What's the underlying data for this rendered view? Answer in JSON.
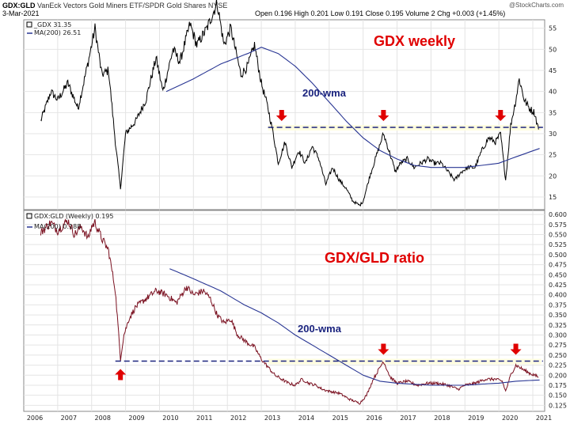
{
  "header": {
    "symbol": "GDX:GLD",
    "description": "VanEck Vectors Gold Miners ETF/SPDR Gold Shares NYSE",
    "date": "3-Mar-2021",
    "quote": "Open 0.196  High 0.201  Low 0.191  Close 0.195  Volume 2  Chg +0.003 (+1.45%)",
    "watermark": "@StockCharts.com"
  },
  "colors": {
    "gdx_line": "#000000",
    "ratio_line": "#7a1020",
    "ma_line": "#283593",
    "dashed_line": "#1a237e",
    "arrow": "#e00000",
    "highlight": "#fffde0"
  },
  "chart_data": [
    {
      "type": "line",
      "title": "GDX weekly",
      "legend": [
        {
          "label": "_GDX 31.35",
          "marker": "square"
        },
        {
          "label": "MA(200) 26.51",
          "marker": "line"
        }
      ],
      "annotation": "200-wma",
      "ylim": [
        12,
        57
      ],
      "y_ticks": [
        15,
        20,
        25,
        30,
        35,
        40,
        45,
        50,
        55
      ],
      "x_ticks": [
        "2006",
        "2007",
        "2008",
        "2009",
        "2010",
        "2011",
        "2012",
        "2013",
        "2014",
        "2015",
        "2016",
        "2017",
        "2018",
        "2019",
        "2020",
        "2021"
      ],
      "xlim": [
        2006,
        2021.35
      ],
      "resistance_level": 31.5,
      "arrows_x": [
        2013.6,
        2016.6,
        2020.05
      ],
      "series": [
        {
          "key": "price",
          "points": [
            [
              2006.5,
              33
            ],
            [
              2006.8,
              40
            ],
            [
              2007.0,
              38
            ],
            [
              2007.3,
              42
            ],
            [
              2007.6,
              36
            ],
            [
              2007.9,
              47
            ],
            [
              2008.1,
              55
            ],
            [
              2008.3,
              44
            ],
            [
              2008.5,
              45
            ],
            [
              2008.7,
              28
            ],
            [
              2008.85,
              17
            ],
            [
              2009.0,
              30
            ],
            [
              2009.3,
              33
            ],
            [
              2009.6,
              38
            ],
            [
              2009.9,
              48
            ],
            [
              2010.1,
              40
            ],
            [
              2010.4,
              50
            ],
            [
              2010.6,
              47
            ],
            [
              2010.9,
              56
            ],
            [
              2011.1,
              51
            ],
            [
              2011.4,
              55
            ],
            [
              2011.7,
              61
            ],
            [
              2011.9,
              51
            ],
            [
              2012.1,
              55
            ],
            [
              2012.4,
              44
            ],
            [
              2012.6,
              46
            ],
            [
              2012.8,
              51
            ],
            [
              2013.0,
              42
            ],
            [
              2013.2,
              36
            ],
            [
              2013.35,
              30
            ],
            [
              2013.5,
              23
            ],
            [
              2013.7,
              28
            ],
            [
              2013.9,
              22
            ],
            [
              2014.1,
              26
            ],
            [
              2014.3,
              23
            ],
            [
              2014.5,
              27
            ],
            [
              2014.7,
              24
            ],
            [
              2014.9,
              18
            ],
            [
              2015.1,
              22
            ],
            [
              2015.3,
              19
            ],
            [
              2015.5,
              17
            ],
            [
              2015.7,
              14
            ],
            [
              2015.9,
              13
            ],
            [
              2016.0,
              14
            ],
            [
              2016.2,
              20
            ],
            [
              2016.4,
              25
            ],
            [
              2016.6,
              30
            ],
            [
              2016.8,
              25
            ],
            [
              2016.95,
              21
            ],
            [
              2017.1,
              23
            ],
            [
              2017.3,
              24
            ],
            [
              2017.5,
              22
            ],
            [
              2017.7,
              23
            ],
            [
              2017.9,
              24
            ],
            [
              2018.1,
              23
            ],
            [
              2018.3,
              23
            ],
            [
              2018.5,
              21
            ],
            [
              2018.7,
              19
            ],
            [
              2018.9,
              21
            ],
            [
              2019.1,
              22
            ],
            [
              2019.3,
              22
            ],
            [
              2019.5,
              26
            ],
            [
              2019.7,
              29
            ],
            [
              2019.9,
              28
            ],
            [
              2020.05,
              30
            ],
            [
              2020.2,
              19
            ],
            [
              2020.35,
              32
            ],
            [
              2020.5,
              38
            ],
            [
              2020.6,
              43
            ],
            [
              2020.75,
              38
            ],
            [
              2020.9,
              36
            ],
            [
              2021.05,
              35
            ],
            [
              2021.17,
              31
            ]
          ]
        },
        {
          "key": "ma200",
          "points": [
            [
              2010.2,
              40
            ],
            [
              2011.0,
              43
            ],
            [
              2011.8,
              46.5
            ],
            [
              2012.6,
              49
            ],
            [
              2013.0,
              50.5
            ],
            [
              2013.5,
              49
            ],
            [
              2014.0,
              46
            ],
            [
              2014.5,
              42
            ],
            [
              2015.0,
              37.5
            ],
            [
              2015.5,
              33
            ],
            [
              2016.0,
              29
            ],
            [
              2016.5,
              26
            ],
            [
              2017.0,
              24
            ],
            [
              2017.5,
              22.5
            ],
            [
              2018.0,
              22
            ],
            [
              2018.5,
              22
            ],
            [
              2019.0,
              22
            ],
            [
              2019.5,
              22.5
            ],
            [
              2020.0,
              23
            ],
            [
              2020.5,
              24.5
            ],
            [
              2021.2,
              26.5
            ]
          ]
        }
      ]
    },
    {
      "type": "line",
      "title": "GDX/GLD ratio",
      "legend": [
        {
          "label": "GDX:GLD (Weekly) 0.195",
          "marker": "square"
        },
        {
          "label": "MA(200) 0.188",
          "marker": "line"
        }
      ],
      "annotation": "200-wma",
      "ylim": [
        0.11,
        0.61
      ],
      "y_ticks": [
        "0.125",
        "0.150",
        "0.175",
        "0.200",
        "0.225",
        "0.250",
        "0.275",
        "0.300",
        "0.325",
        "0.350",
        "0.375",
        "0.400",
        "0.425",
        "0.450",
        "0.475",
        "0.500",
        "0.525",
        "0.550",
        "0.575",
        "0.600"
      ],
      "x_ticks": [
        "2006",
        "2007",
        "2008",
        "2009",
        "2010",
        "2011",
        "2012",
        "2013",
        "2014",
        "2015",
        "2016",
        "2017",
        "2018",
        "2019",
        "2020",
        "2021"
      ],
      "xlim": [
        2006,
        2021.35
      ],
      "resistance_level": 0.235,
      "arrows_x": [
        2008.85,
        2016.6,
        2020.5
      ],
      "arrow_dirs": [
        "up",
        "down",
        "down"
      ],
      "series": [
        {
          "key": "ratio",
          "points": [
            [
              2006.5,
              0.555
            ],
            [
              2006.8,
              0.58
            ],
            [
              2007.0,
              0.56
            ],
            [
              2007.3,
              0.585
            ],
            [
              2007.5,
              0.55
            ],
            [
              2007.7,
              0.57
            ],
            [
              2007.9,
              0.54
            ],
            [
              2008.0,
              0.57
            ],
            [
              2008.1,
              0.58
            ],
            [
              2008.3,
              0.54
            ],
            [
              2008.5,
              0.51
            ],
            [
              2008.7,
              0.41
            ],
            [
              2008.85,
              0.24
            ],
            [
              2008.95,
              0.3
            ],
            [
              2009.1,
              0.34
            ],
            [
              2009.3,
              0.37
            ],
            [
              2009.6,
              0.39
            ],
            [
              2009.9,
              0.41
            ],
            [
              2010.2,
              0.4
            ],
            [
              2010.5,
              0.38
            ],
            [
              2010.8,
              0.42
            ],
            [
              2011.0,
              0.4
            ],
            [
              2011.3,
              0.41
            ],
            [
              2011.5,
              0.39
            ],
            [
              2011.7,
              0.35
            ],
            [
              2011.9,
              0.33
            ],
            [
              2012.1,
              0.34
            ],
            [
              2012.3,
              0.3
            ],
            [
              2012.6,
              0.28
            ],
            [
              2012.8,
              0.27
            ],
            [
              2013.0,
              0.24
            ],
            [
              2013.2,
              0.22
            ],
            [
              2013.4,
              0.2
            ],
            [
              2013.6,
              0.19
            ],
            [
              2013.8,
              0.18
            ],
            [
              2014.0,
              0.175
            ],
            [
              2014.2,
              0.19
            ],
            [
              2014.4,
              0.18
            ],
            [
              2014.6,
              0.175
            ],
            [
              2014.8,
              0.165
            ],
            [
              2015.0,
              0.16
            ],
            [
              2015.3,
              0.155
            ],
            [
              2015.6,
              0.14
            ],
            [
              2015.9,
              0.13
            ],
            [
              2016.1,
              0.15
            ],
            [
              2016.3,
              0.19
            ],
            [
              2016.5,
              0.22
            ],
            [
              2016.6,
              0.235
            ],
            [
              2016.8,
              0.195
            ],
            [
              2017.0,
              0.18
            ],
            [
              2017.3,
              0.185
            ],
            [
              2017.6,
              0.175
            ],
            [
              2017.9,
              0.18
            ],
            [
              2018.2,
              0.18
            ],
            [
              2018.5,
              0.175
            ],
            [
              2018.8,
              0.165
            ],
            [
              2019.0,
              0.175
            ],
            [
              2019.3,
              0.18
            ],
            [
              2019.6,
              0.19
            ],
            [
              2019.9,
              0.19
            ],
            [
              2020.1,
              0.185
            ],
            [
              2020.2,
              0.16
            ],
            [
              2020.35,
              0.2
            ],
            [
              2020.5,
              0.225
            ],
            [
              2020.7,
              0.215
            ],
            [
              2020.9,
              0.205
            ],
            [
              2021.05,
              0.2
            ],
            [
              2021.17,
              0.195
            ]
          ]
        },
        {
          "key": "ma200",
          "points": [
            [
              2010.3,
              0.465
            ],
            [
              2011.0,
              0.44
            ],
            [
              2011.8,
              0.41
            ],
            [
              2012.5,
              0.375
            ],
            [
              2013.0,
              0.355
            ],
            [
              2013.5,
              0.33
            ],
            [
              2014.0,
              0.3
            ],
            [
              2014.5,
              0.275
            ],
            [
              2015.0,
              0.25
            ],
            [
              2015.5,
              0.225
            ],
            [
              2016.0,
              0.2
            ],
            [
              2016.5,
              0.185
            ],
            [
              2017.0,
              0.18
            ],
            [
              2018.0,
              0.175
            ],
            [
              2019.0,
              0.175
            ],
            [
              2019.5,
              0.178
            ],
            [
              2020.0,
              0.18
            ],
            [
              2020.5,
              0.185
            ],
            [
              2021.2,
              0.188
            ]
          ]
        }
      ]
    }
  ]
}
